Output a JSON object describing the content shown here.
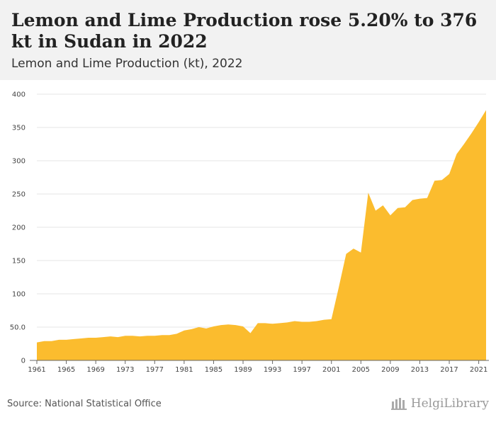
{
  "header": {
    "title": "Lemon and Lime Production rose 5.20% to 376 kt in Sudan in 2022",
    "subtitle": "Lemon and Lime Production (kt), 2022"
  },
  "footer": {
    "source": "Source: National Statistical Office",
    "brand": "HelgiLibrary"
  },
  "icons": {
    "brand_logo": "helgi-library-logo-icon"
  },
  "colors": {
    "area_fill": "#FBBC2E",
    "grid": "#e6e6e6",
    "header_bg": "#f2f2f2"
  },
  "chart_data": {
    "type": "area",
    "title": "Lemon and Lime Production rose 5.20% to 376 kt in Sudan in 2022",
    "subtitle": "Lemon and Lime Production (kt), 2022",
    "xlabel": "",
    "ylabel": "",
    "ylim": [
      0,
      400
    ],
    "yticks": [
      0,
      50,
      100,
      150,
      200,
      250,
      300,
      350,
      400
    ],
    "ytick_labels": [
      "0",
      "50.0",
      "100",
      "150",
      "200",
      "250",
      "300",
      "350",
      "400"
    ],
    "xticks": [
      1961,
      1965,
      1969,
      1973,
      1977,
      1981,
      1985,
      1989,
      1993,
      1997,
      2001,
      2005,
      2009,
      2013,
      2017,
      2021
    ],
    "grid": true,
    "legend": "none",
    "x": [
      1961,
      1962,
      1963,
      1964,
      1965,
      1966,
      1967,
      1968,
      1969,
      1970,
      1971,
      1972,
      1973,
      1974,
      1975,
      1976,
      1977,
      1978,
      1979,
      1980,
      1981,
      1982,
      1983,
      1984,
      1985,
      1986,
      1987,
      1988,
      1989,
      1990,
      1991,
      1992,
      1993,
      1994,
      1995,
      1996,
      1997,
      1998,
      1999,
      2000,
      2001,
      2002,
      2003,
      2004,
      2005,
      2006,
      2007,
      2008,
      2009,
      2010,
      2011,
      2012,
      2013,
      2014,
      2015,
      2016,
      2017,
      2018,
      2019,
      2020,
      2021,
      2022
    ],
    "series": [
      {
        "values": [
          27,
          29,
          29,
          31,
          31,
          32,
          33,
          34,
          34,
          35,
          36,
          35,
          37,
          37,
          36,
          37,
          37,
          38,
          38,
          40,
          45,
          47,
          50,
          48,
          51,
          53,
          54,
          53,
          51,
          41,
          56,
          56,
          55,
          56,
          57,
          59,
          58,
          58,
          59,
          61,
          62,
          110,
          160,
          168,
          162,
          252,
          225,
          233,
          218,
          229,
          230,
          241,
          243,
          244,
          270,
          271,
          280,
          310,
          325,
          341,
          358,
          376
        ]
      }
    ]
  }
}
